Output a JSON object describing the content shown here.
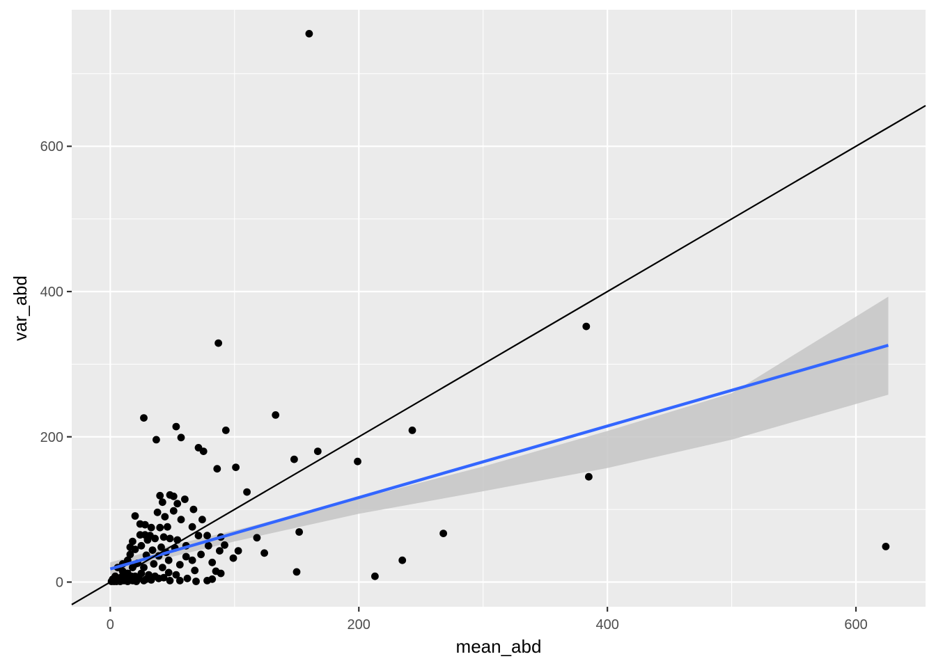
{
  "chart_data": {
    "type": "scatter",
    "title": "",
    "xlabel": "mean_abd",
    "ylabel": "var_abd",
    "xlim": [
      -31,
      656
    ],
    "ylim": [
      -34,
      788
    ],
    "x_ticks": [
      0,
      200,
      400,
      600
    ],
    "y_ticks": [
      0,
      200,
      400,
      600
    ],
    "x_tick_labels": [
      "0",
      "200",
      "400",
      "600"
    ],
    "y_tick_labels": [
      "0",
      "200",
      "400",
      "600"
    ],
    "grid": true,
    "legend": "none",
    "colors": {
      "panel": "#EBEBEB",
      "grid": "#FFFFFF",
      "points": "#000000",
      "fit_line": "#3366FF",
      "ribbon": "#C6C6C6",
      "identity_line": "#000000"
    },
    "identity_line": {
      "slope": 1,
      "intercept": 0
    },
    "fit_line": {
      "x": [
        0,
        626
      ],
      "y": [
        18,
        326
      ]
    },
    "confidence_band": {
      "x": [
        0,
        50,
        100,
        200,
        300,
        400,
        500,
        626
      ],
      "lower": [
        10,
        35,
        56,
        94,
        125,
        157,
        196,
        258
      ],
      "upper": [
        27,
        51,
        71,
        115,
        159,
        208,
        260,
        393
      ]
    },
    "points": [
      [
        160,
        755
      ],
      [
        87,
        329
      ],
      [
        383,
        352
      ],
      [
        133,
        230
      ],
      [
        27,
        226
      ],
      [
        53,
        214
      ],
      [
        243,
        209
      ],
      [
        93,
        209
      ],
      [
        57,
        199
      ],
      [
        37,
        196
      ],
      [
        71,
        185
      ],
      [
        75,
        180
      ],
      [
        167,
        180
      ],
      [
        199,
        166
      ],
      [
        148,
        169
      ],
      [
        101,
        158
      ],
      [
        86,
        156
      ],
      [
        385,
        145
      ],
      [
        110,
        124
      ],
      [
        40,
        119
      ],
      [
        48,
        120
      ],
      [
        51,
        118
      ],
      [
        60,
        114
      ],
      [
        42,
        110
      ],
      [
        54,
        108
      ],
      [
        67,
        100
      ],
      [
        51,
        98
      ],
      [
        38,
        96
      ],
      [
        20,
        91
      ],
      [
        44,
        90
      ],
      [
        57,
        86
      ],
      [
        74,
        86
      ],
      [
        24,
        80
      ],
      [
        28,
        79
      ],
      [
        46,
        76
      ],
      [
        33,
        75
      ],
      [
        40,
        75
      ],
      [
        66,
        76
      ],
      [
        268,
        67
      ],
      [
        152,
        69
      ],
      [
        24,
        65
      ],
      [
        28,
        65
      ],
      [
        32,
        64
      ],
      [
        71,
        64
      ],
      [
        78,
        64
      ],
      [
        89,
        62
      ],
      [
        43,
        62
      ],
      [
        118,
        61
      ],
      [
        36,
        60
      ],
      [
        48,
        60
      ],
      [
        54,
        58
      ],
      [
        30,
        58
      ],
      [
        18,
        56
      ],
      [
        92,
        51
      ],
      [
        79,
        50
      ],
      [
        61,
        50
      ],
      [
        25,
        50
      ],
      [
        16,
        48
      ],
      [
        41,
        48
      ],
      [
        52,
        47
      ],
      [
        103,
        43
      ],
      [
        88,
        43
      ],
      [
        20,
        45
      ],
      [
        34,
        44
      ],
      [
        45,
        41
      ],
      [
        73,
        38
      ],
      [
        124,
        40
      ],
      [
        16,
        38
      ],
      [
        29,
        37
      ],
      [
        39,
        36
      ],
      [
        61,
        35
      ],
      [
        99,
        33
      ],
      [
        235,
        30
      ],
      [
        14,
        30
      ],
      [
        47,
        30
      ],
      [
        66,
        30
      ],
      [
        82,
        27
      ],
      [
        10,
        25
      ],
      [
        22,
        26
      ],
      [
        35,
        25
      ],
      [
        56,
        24
      ],
      [
        6,
        20
      ],
      [
        18,
        20
      ],
      [
        27,
        20
      ],
      [
        42,
        20
      ],
      [
        10,
        15
      ],
      [
        150,
        14
      ],
      [
        85,
        15
      ],
      [
        89,
        12
      ],
      [
        47,
        13
      ],
      [
        68,
        16
      ],
      [
        14,
        12
      ],
      [
        25,
        12
      ],
      [
        31,
        10
      ],
      [
        53,
        10
      ],
      [
        4,
        8
      ],
      [
        9,
        7
      ],
      [
        17,
        8
      ],
      [
        20,
        8
      ],
      [
        36,
        8
      ],
      [
        213,
        8
      ],
      [
        43,
        6
      ],
      [
        62,
        5
      ],
      [
        2,
        4
      ],
      [
        6,
        4
      ],
      [
        12,
        5
      ],
      [
        23,
        5
      ],
      [
        29,
        4
      ],
      [
        39,
        5
      ],
      [
        56,
        2
      ],
      [
        69,
        1
      ],
      [
        78,
        2
      ],
      [
        82,
        4
      ],
      [
        1,
        1
      ],
      [
        3,
        1
      ],
      [
        5,
        1
      ],
      [
        8,
        1
      ],
      [
        11,
        2
      ],
      [
        14,
        1
      ],
      [
        18,
        2
      ],
      [
        21,
        1
      ],
      [
        27,
        2
      ],
      [
        33,
        3
      ],
      [
        48,
        2
      ],
      [
        624,
        49
      ]
    ]
  }
}
